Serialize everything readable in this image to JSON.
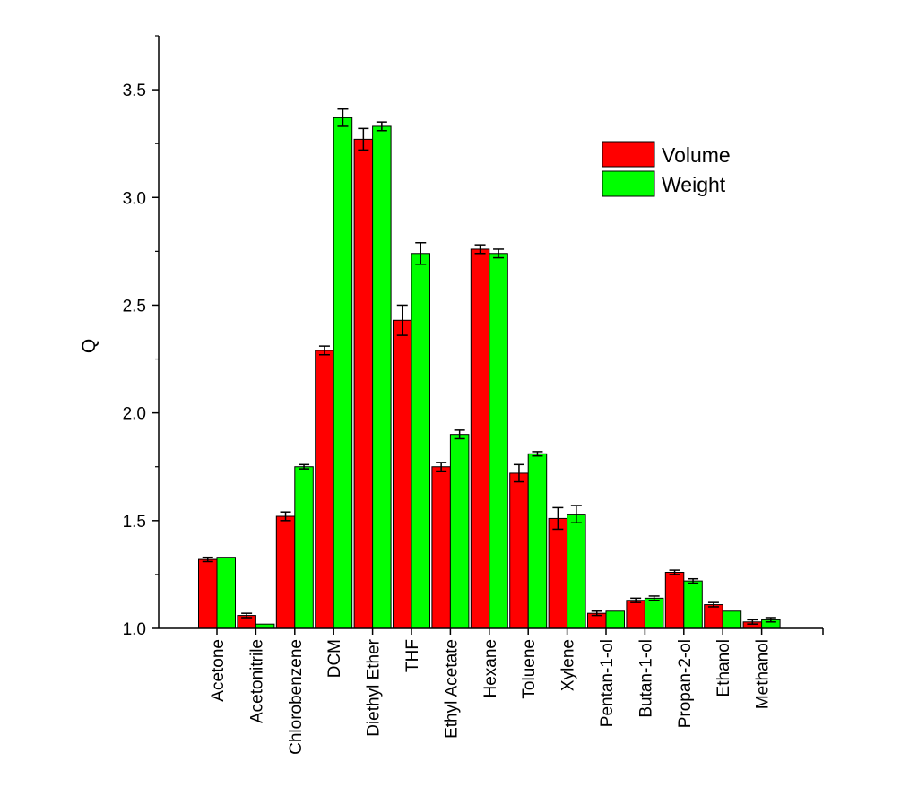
{
  "chart_data": {
    "type": "bar",
    "title": "",
    "xlabel": "",
    "ylabel": "Q",
    "ylim": [
      1.0,
      3.75
    ],
    "yticks": [
      "1.0",
      "1.5",
      "2.0",
      "2.5",
      "3.0",
      "3.5"
    ],
    "ytick_values": [
      1.0,
      1.5,
      2.0,
      2.5,
      3.0,
      3.5
    ],
    "grid": false,
    "legend_position": "top-right",
    "categories": [
      "Acetone",
      "Acetonitrile",
      "Chlorobenzene",
      "DCM",
      "Diethyl Ether",
      "THF",
      "Ethyl Acetate",
      "Hexane",
      "Toluene",
      "Xylene",
      "Pentan-1-ol",
      "Butan-1-ol",
      "Propan-2-ol",
      "Ethanol",
      "Methanol"
    ],
    "series": [
      {
        "name": "Volume",
        "color": "#ff0000",
        "values": [
          1.32,
          1.06,
          1.52,
          2.29,
          3.27,
          2.43,
          1.75,
          2.76,
          1.72,
          1.51,
          1.07,
          1.13,
          1.26,
          1.11,
          1.03
        ],
        "errors": [
          0.01,
          0.01,
          0.02,
          0.02,
          0.05,
          0.07,
          0.02,
          0.02,
          0.04,
          0.05,
          0.01,
          0.01,
          0.01,
          0.01,
          0.01
        ]
      },
      {
        "name": "Weight",
        "color": "#00ff00",
        "values": [
          1.33,
          1.02,
          1.75,
          3.37,
          3.33,
          2.74,
          1.9,
          2.74,
          1.81,
          1.53,
          1.08,
          1.14,
          1.22,
          1.08,
          1.04
        ],
        "errors": [
          0.0,
          0.0,
          0.01,
          0.04,
          0.02,
          0.05,
          0.02,
          0.02,
          0.01,
          0.04,
          0.0,
          0.01,
          0.01,
          0.0,
          0.01
        ]
      }
    ]
  }
}
